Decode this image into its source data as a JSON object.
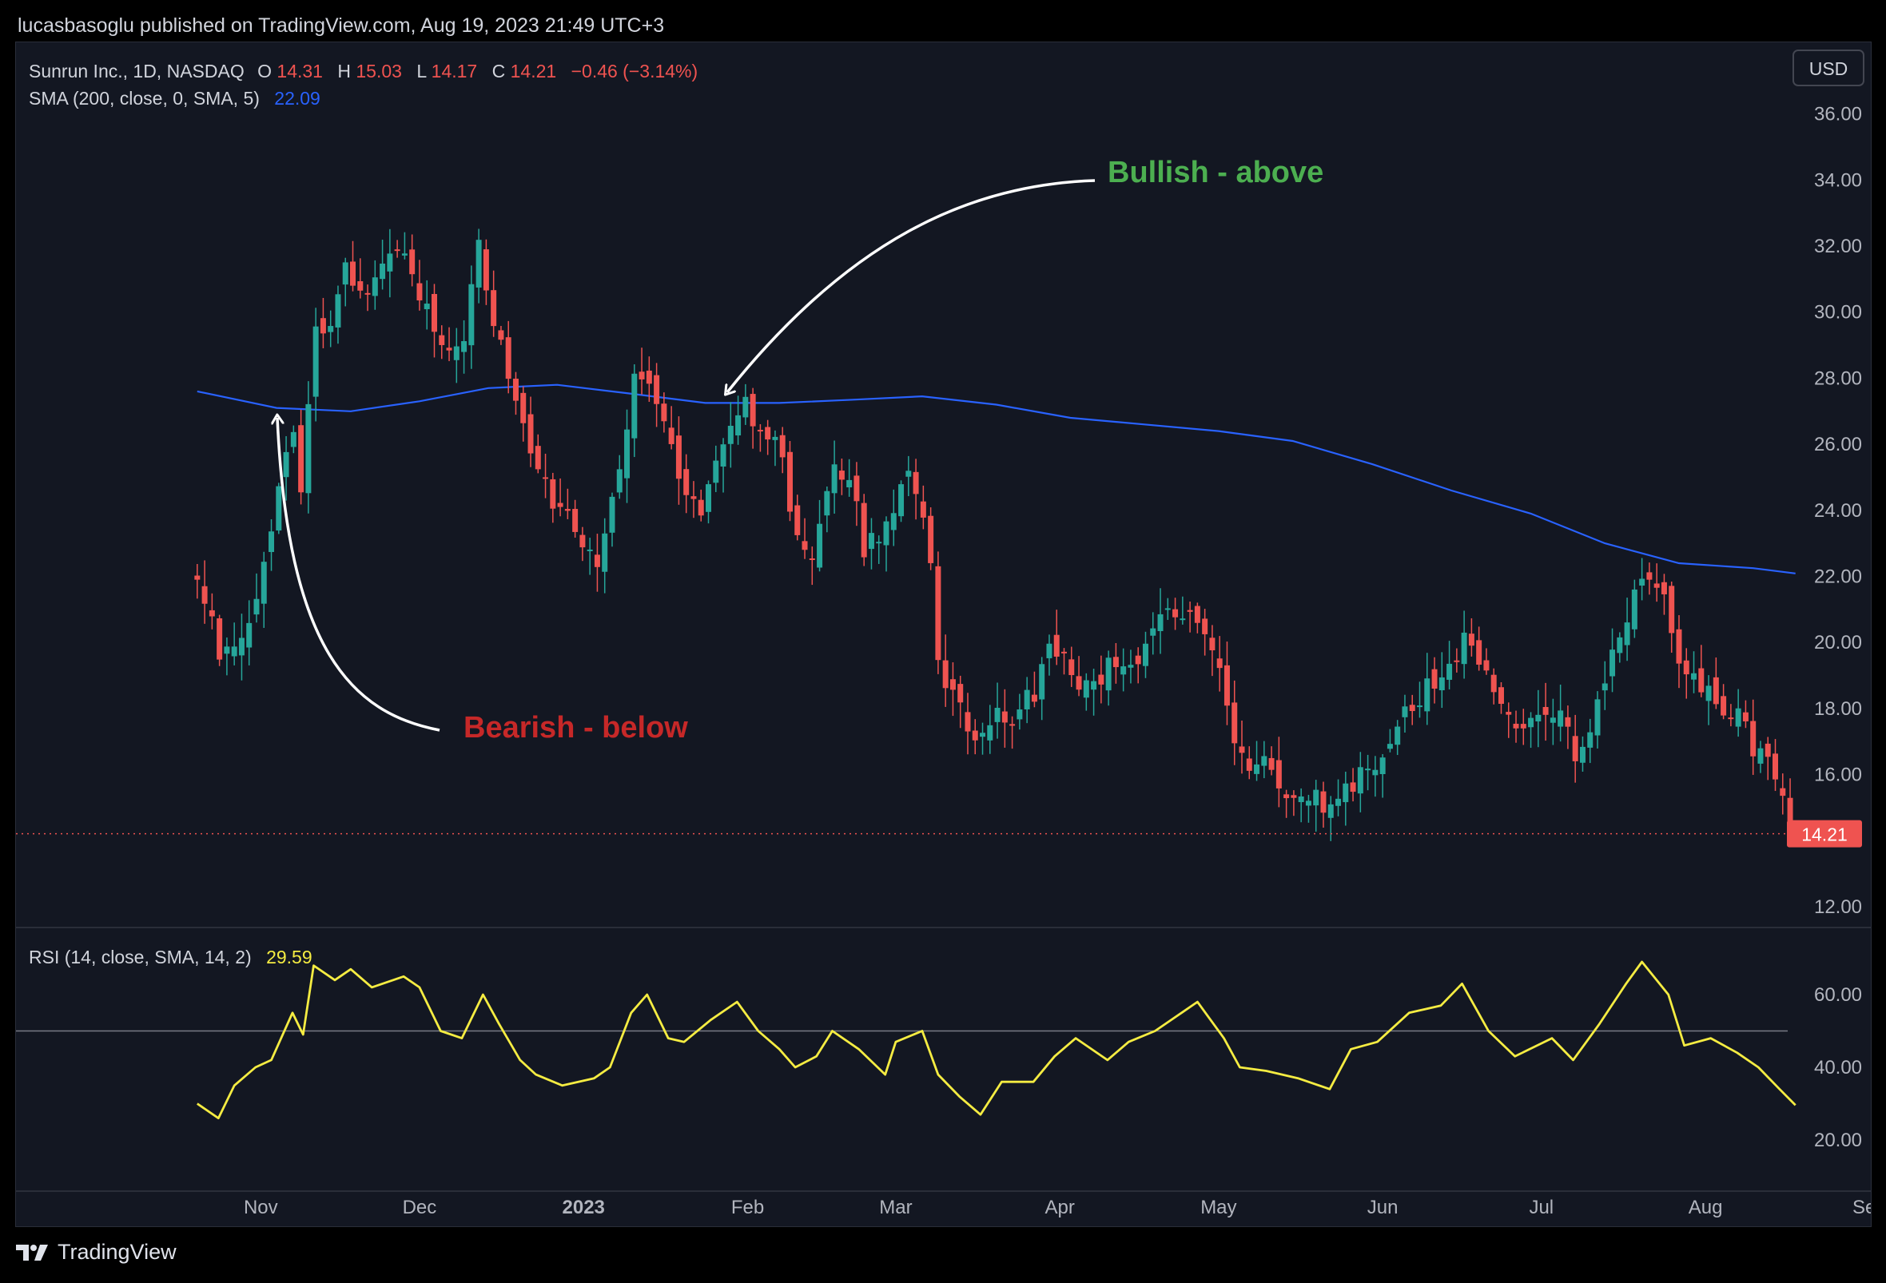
{
  "header": {
    "publisher": "lucasbasoglu published on TradingView.com, Aug 19, 2023 21:49 UTC+3"
  },
  "legend": {
    "symbol": "Sunrun Inc., 1D, NASDAQ",
    "o_label": "O",
    "o_value": "14.31",
    "h_label": "H",
    "h_value": "15.03",
    "l_label": "L",
    "l_value": "14.17",
    "c_label": "C",
    "c_value": "14.21",
    "change": "−0.46 (−3.14%)",
    "sma_label": "SMA (200, close, 0, SMA, 5)",
    "sma_value": "22.09",
    "rsi_label": "RSI (14, close, SMA, 14, 2)",
    "rsi_value": "29.59"
  },
  "currency_button": "USD",
  "last_price_tag": "14.21",
  "annotations": {
    "bullish": "Bullish - above",
    "bearish": "Bearish - below"
  },
  "brand": {
    "name": "TradingView"
  },
  "colors": {
    "up": "#26a69a",
    "down": "#ef5350",
    "sma": "#2962ff",
    "rsi": "#f5ec42",
    "bullish": "#4caf50",
    "bearish": "#c62828",
    "bg": "#131722"
  },
  "chart_data": [
    {
      "type": "candlestick",
      "x_ticks": [
        "Nov",
        "Dec",
        "2023",
        "Feb",
        "Mar",
        "Apr",
        "May",
        "Jun",
        "Jul",
        "Aug",
        "Sep"
      ],
      "y_ticks": [
        "36.00",
        "34.00",
        "32.00",
        "30.00",
        "28.00",
        "26.00",
        "24.00",
        "22.00",
        "20.00",
        "18.00",
        "16.00",
        "12.00"
      ],
      "ylim": [
        12,
        36
      ],
      "close_path": [
        [
          "2022-10-20",
          22.3
        ],
        [
          "2022-10-24",
          19.8
        ],
        [
          "2022-10-27",
          19.5
        ],
        [
          "2022-10-31",
          21.5
        ],
        [
          "2022-11-03",
          23.4
        ],
        [
          "2022-11-07",
          26.8
        ],
        [
          "2022-11-09",
          24.0
        ],
        [
          "2022-11-11",
          30.0
        ],
        [
          "2022-11-14",
          29.5
        ],
        [
          "2022-11-17",
          31.3
        ],
        [
          "2022-11-21",
          30.6
        ],
        [
          "2022-11-25",
          31.5
        ],
        [
          "2022-11-29",
          31.6
        ],
        [
          "2022-12-02",
          30.1
        ],
        [
          "2022-12-06",
          28.8
        ],
        [
          "2022-12-09",
          28.5
        ],
        [
          "2022-12-12",
          32.0
        ],
        [
          "2022-12-15",
          29.8
        ],
        [
          "2022-12-19",
          27.2
        ],
        [
          "2022-12-22",
          25.6
        ],
        [
          "2022-12-27",
          23.8
        ],
        [
          "2022-12-30",
          23.6
        ],
        [
          "2023-01-04",
          22.4
        ],
        [
          "2023-01-06",
          24.2
        ],
        [
          "2023-01-09",
          26.5
        ],
        [
          "2023-01-11",
          28.5
        ],
        [
          "2023-01-13",
          28.0
        ],
        [
          "2023-01-17",
          26.0
        ],
        [
          "2023-01-19",
          25.0
        ],
        [
          "2023-01-23",
          23.7
        ],
        [
          "2023-01-26",
          25.5
        ],
        [
          "2023-01-31",
          27.4
        ],
        [
          "2023-02-03",
          26.5
        ],
        [
          "2023-02-07",
          25.8
        ],
        [
          "2023-02-09",
          24.0
        ],
        [
          "2023-02-13",
          22.7
        ],
        [
          "2023-02-15",
          23.5
        ],
        [
          "2023-02-17",
          25.4
        ],
        [
          "2023-02-21",
          24.3
        ],
        [
          "2023-02-23",
          22.9
        ],
        [
          "2023-02-27",
          23.5
        ],
        [
          "2023-03-01",
          24.2
        ],
        [
          "2023-03-03",
          25.2
        ],
        [
          "2023-03-07",
          23.5
        ],
        [
          "2023-03-09",
          19.2
        ],
        [
          "2023-03-13",
          18.2
        ],
        [
          "2023-03-15",
          17.2
        ],
        [
          "2023-03-20",
          17.8
        ],
        [
          "2023-03-23",
          17.4
        ],
        [
          "2023-03-27",
          18.5
        ],
        [
          "2023-03-30",
          19.9
        ],
        [
          "2023-04-03",
          19.1
        ],
        [
          "2023-04-06",
          18.6
        ],
        [
          "2023-04-11",
          19.5
        ],
        [
          "2023-04-14",
          19.3
        ],
        [
          "2023-04-18",
          20.0
        ],
        [
          "2023-04-21",
          20.7
        ],
        [
          "2023-04-25",
          21.1
        ],
        [
          "2023-04-27",
          20.6
        ],
        [
          "2023-05-01",
          19.6
        ],
        [
          "2023-05-03",
          17.6
        ],
        [
          "2023-05-05",
          16.6
        ],
        [
          "2023-05-09",
          16.4
        ],
        [
          "2023-05-12",
          15.8
        ],
        [
          "2023-05-16",
          15.4
        ],
        [
          "2023-05-19",
          15.5
        ],
        [
          "2023-05-23",
          14.7
        ],
        [
          "2023-05-25",
          15.6
        ],
        [
          "2023-05-30",
          16.2
        ],
        [
          "2023-06-02",
          17.0
        ],
        [
          "2023-06-06",
          18.0
        ],
        [
          "2023-06-09",
          18.6
        ],
        [
          "2023-06-13",
          19.0
        ],
        [
          "2023-06-16",
          20.0
        ],
        [
          "2023-06-20",
          19.2
        ],
        [
          "2023-06-23",
          18.4
        ],
        [
          "2023-06-27",
          17.6
        ],
        [
          "2023-06-30",
          18.2
        ],
        [
          "2023-07-05",
          17.6
        ],
        [
          "2023-07-07",
          16.6
        ],
        [
          "2023-07-11",
          17.7
        ],
        [
          "2023-07-14",
          19.6
        ],
        [
          "2023-07-18",
          21.0
        ],
        [
          "2023-07-20",
          22.2
        ],
        [
          "2023-07-24",
          21.2
        ],
        [
          "2023-07-27",
          19.6
        ],
        [
          "2023-07-31",
          18.4
        ],
        [
          "2023-08-02",
          18.6
        ],
        [
          "2023-08-04",
          17.5
        ],
        [
          "2023-08-08",
          17.7
        ],
        [
          "2023-08-10",
          16.8
        ],
        [
          "2023-08-14",
          15.9
        ],
        [
          "2023-08-16",
          14.9
        ],
        [
          "2023-08-18",
          14.21
        ]
      ],
      "sma_200": [
        [
          "2022-10-20",
          27.6
        ],
        [
          "2022-11-04",
          27.1
        ],
        [
          "2022-11-18",
          27.0
        ],
        [
          "2022-12-01",
          27.3
        ],
        [
          "2022-12-14",
          27.7
        ],
        [
          "2022-12-27",
          27.8
        ],
        [
          "2023-01-09",
          27.55
        ],
        [
          "2023-01-24",
          27.25
        ],
        [
          "2023-02-07",
          27.25
        ],
        [
          "2023-02-21",
          27.35
        ],
        [
          "2023-03-06",
          27.45
        ],
        [
          "2023-03-20",
          27.2
        ],
        [
          "2023-04-03",
          26.8
        ],
        [
          "2023-04-17",
          26.6
        ],
        [
          "2023-05-01",
          26.4
        ],
        [
          "2023-05-15",
          26.1
        ],
        [
          "2023-05-30",
          25.4
        ],
        [
          "2023-06-14",
          24.6
        ],
        [
          "2023-06-29",
          23.9
        ],
        [
          "2023-07-13",
          23.0
        ],
        [
          "2023-07-27",
          22.4
        ],
        [
          "2023-08-10",
          22.25
        ],
        [
          "2023-08-18",
          22.09
        ]
      ]
    },
    {
      "type": "line",
      "name": "RSI",
      "y_ticks": [
        "60.00",
        "40.00",
        "20.00"
      ],
      "ylim": [
        10,
        75
      ],
      "midline": 50,
      "series": [
        [
          "2022-10-20",
          30
        ],
        [
          "2022-10-24",
          26
        ],
        [
          "2022-10-27",
          35
        ],
        [
          "2022-10-31",
          40
        ],
        [
          "2022-11-03",
          42
        ],
        [
          "2022-11-07",
          55
        ],
        [
          "2022-11-09",
          49
        ],
        [
          "2022-11-11",
          68
        ],
        [
          "2022-11-15",
          64
        ],
        [
          "2022-11-18",
          67
        ],
        [
          "2022-11-22",
          62
        ],
        [
          "2022-11-28",
          65
        ],
        [
          "2022-12-01",
          62
        ],
        [
          "2022-12-05",
          50
        ],
        [
          "2022-12-09",
          48
        ],
        [
          "2022-12-13",
          60
        ],
        [
          "2022-12-16",
          52
        ],
        [
          "2022-12-20",
          42
        ],
        [
          "2022-12-23",
          38
        ],
        [
          "2022-12-28",
          35
        ],
        [
          "2023-01-03",
          37
        ],
        [
          "2023-01-06",
          40
        ],
        [
          "2023-01-10",
          55
        ],
        [
          "2023-01-13",
          60
        ],
        [
          "2023-01-17",
          48
        ],
        [
          "2023-01-20",
          47
        ],
        [
          "2023-01-25",
          53
        ],
        [
          "2023-01-30",
          58
        ],
        [
          "2023-02-03",
          50
        ],
        [
          "2023-02-07",
          45
        ],
        [
          "2023-02-10",
          40
        ],
        [
          "2023-02-14",
          43
        ],
        [
          "2023-02-17",
          50
        ],
        [
          "2023-02-22",
          45
        ],
        [
          "2023-02-27",
          38
        ],
        [
          "2023-03-01",
          47
        ],
        [
          "2023-03-06",
          50
        ],
        [
          "2023-03-09",
          38
        ],
        [
          "2023-03-13",
          32
        ],
        [
          "2023-03-17",
          27
        ],
        [
          "2023-03-21",
          36
        ],
        [
          "2023-03-27",
          36
        ],
        [
          "2023-03-31",
          43
        ],
        [
          "2023-04-04",
          48
        ],
        [
          "2023-04-10",
          42
        ],
        [
          "2023-04-14",
          47
        ],
        [
          "2023-04-19",
          50
        ],
        [
          "2023-04-24",
          55
        ],
        [
          "2023-04-27",
          58
        ],
        [
          "2023-05-02",
          48
        ],
        [
          "2023-05-05",
          40
        ],
        [
          "2023-05-10",
          39
        ],
        [
          "2023-05-16",
          37
        ],
        [
          "2023-05-22",
          34
        ],
        [
          "2023-05-26",
          45
        ],
        [
          "2023-05-31",
          47
        ],
        [
          "2023-06-06",
          55
        ],
        [
          "2023-06-12",
          57
        ],
        [
          "2023-06-16",
          63
        ],
        [
          "2023-06-21",
          50
        ],
        [
          "2023-06-26",
          43
        ],
        [
          "2023-07-03",
          48
        ],
        [
          "2023-07-07",
          42
        ],
        [
          "2023-07-12",
          52
        ],
        [
          "2023-07-17",
          63
        ],
        [
          "2023-07-20",
          69
        ],
        [
          "2023-07-25",
          60
        ],
        [
          "2023-07-28",
          46
        ],
        [
          "2023-08-02",
          48
        ],
        [
          "2023-08-07",
          44
        ],
        [
          "2023-08-11",
          40
        ],
        [
          "2023-08-15",
          34
        ],
        [
          "2023-08-18",
          29.59
        ]
      ]
    }
  ]
}
